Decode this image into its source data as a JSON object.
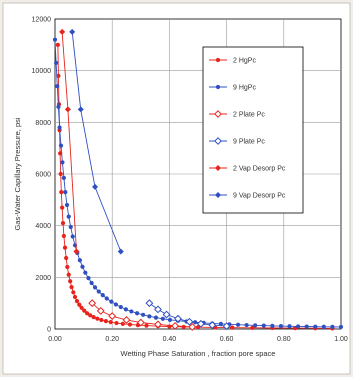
{
  "chart_data": {
    "type": "scatter",
    "xlabel": "Wetting Phase Saturation , fraction pore space",
    "ylabel": "Gas-Water Capillary Pressure, psi",
    "xlim": [
      0,
      1
    ],
    "ylim": [
      0,
      12000
    ],
    "x_ticks": [
      "0.00",
      "0.20",
      "0.40",
      "0.60",
      "0.80",
      "1.00"
    ],
    "y_ticks": [
      "0",
      "2000",
      "4000",
      "6000",
      "8000",
      "10000",
      "12000"
    ],
    "grid": true,
    "legend_position": "top-right",
    "series": [
      {
        "name": "2 HgPc",
        "color": "#e8231c",
        "marker": "circle-filled",
        "line": true,
        "points": [
          [
            0.01,
            11000
          ],
          [
            0.012,
            9800
          ],
          [
            0.014,
            8700
          ],
          [
            0.016,
            7700
          ],
          [
            0.018,
            6800
          ],
          [
            0.02,
            6000
          ],
          [
            0.022,
            5300
          ],
          [
            0.025,
            4700
          ],
          [
            0.028,
            4100
          ],
          [
            0.031,
            3600
          ],
          [
            0.035,
            3150
          ],
          [
            0.039,
            2750
          ],
          [
            0.043,
            2400
          ],
          [
            0.048,
            2100
          ],
          [
            0.053,
            1850
          ],
          [
            0.058,
            1620
          ],
          [
            0.064,
            1420
          ],
          [
            0.07,
            1240
          ],
          [
            0.077,
            1080
          ],
          [
            0.085,
            940
          ],
          [
            0.093,
            820
          ],
          [
            0.102,
            710
          ],
          [
            0.112,
            610
          ],
          [
            0.123,
            530
          ],
          [
            0.135,
            460
          ],
          [
            0.148,
            400
          ],
          [
            0.162,
            350
          ],
          [
            0.178,
            305
          ],
          [
            0.195,
            265
          ],
          [
            0.215,
            230
          ],
          [
            0.237,
            200
          ],
          [
            0.262,
            175
          ],
          [
            0.29,
            150
          ],
          [
            0.32,
            130
          ],
          [
            0.36,
            110
          ],
          [
            0.4,
            95
          ],
          [
            0.45,
            80
          ],
          [
            0.5,
            70
          ],
          [
            0.56,
            60
          ],
          [
            0.62,
            52
          ],
          [
            0.69,
            45
          ],
          [
            0.76,
            40
          ],
          [
            0.84,
            35
          ],
          [
            0.91,
            30
          ],
          [
            0.97,
            25
          ]
        ]
      },
      {
        "name": "9 HgPc",
        "color": "#2f4fc2",
        "marker": "circle-filled",
        "line": true,
        "points": [
          [
            0.0,
            11200
          ],
          [
            0.004,
            10300
          ],
          [
            0.008,
            9400
          ],
          [
            0.012,
            8600
          ],
          [
            0.016,
            7800
          ],
          [
            0.021,
            7100
          ],
          [
            0.026,
            6450
          ],
          [
            0.031,
            5850
          ],
          [
            0.036,
            5300
          ],
          [
            0.042,
            4800
          ],
          [
            0.048,
            4350
          ],
          [
            0.055,
            3950
          ],
          [
            0.062,
            3580
          ],
          [
            0.07,
            3240
          ],
          [
            0.078,
            2940
          ],
          [
            0.087,
            2660
          ],
          [
            0.096,
            2410
          ],
          [
            0.106,
            2180
          ],
          [
            0.117,
            1970
          ],
          [
            0.128,
            1780
          ],
          [
            0.14,
            1610
          ],
          [
            0.153,
            1450
          ],
          [
            0.167,
            1310
          ],
          [
            0.181,
            1180
          ],
          [
            0.197,
            1060
          ],
          [
            0.213,
            950
          ],
          [
            0.23,
            850
          ],
          [
            0.248,
            760
          ],
          [
            0.267,
            680
          ],
          [
            0.287,
            610
          ],
          [
            0.308,
            550
          ],
          [
            0.33,
            490
          ],
          [
            0.353,
            440
          ],
          [
            0.377,
            395
          ],
          [
            0.402,
            355
          ],
          [
            0.43,
            320
          ],
          [
            0.46,
            290
          ],
          [
            0.49,
            262
          ],
          [
            0.52,
            238
          ],
          [
            0.55,
            216
          ],
          [
            0.58,
            197
          ],
          [
            0.61,
            180
          ],
          [
            0.64,
            165
          ],
          [
            0.67,
            152
          ],
          [
            0.7,
            140
          ],
          [
            0.73,
            130
          ],
          [
            0.76,
            121
          ],
          [
            0.79,
            113
          ],
          [
            0.82,
            106
          ],
          [
            0.85,
            100
          ],
          [
            0.88,
            95
          ],
          [
            0.91,
            90
          ],
          [
            0.94,
            86
          ],
          [
            0.97,
            83
          ],
          [
            1.0,
            80
          ]
        ]
      },
      {
        "name": "2 Plate Pc",
        "color": "#e8231c",
        "marker": "diamond-open",
        "line": true,
        "points": [
          [
            0.13,
            1000
          ],
          [
            0.16,
            700
          ],
          [
            0.2,
            500
          ],
          [
            0.25,
            350
          ],
          [
            0.3,
            250
          ],
          [
            0.36,
            180
          ],
          [
            0.42,
            120
          ],
          [
            0.48,
            80
          ]
        ]
      },
      {
        "name": "9 Plate Pc",
        "color": "#2f4fc2",
        "marker": "diamond-open",
        "line": true,
        "points": [
          [
            0.33,
            1000
          ],
          [
            0.36,
            760
          ],
          [
            0.39,
            560
          ],
          [
            0.43,
            400
          ],
          [
            0.47,
            280
          ],
          [
            0.51,
            200
          ],
          [
            0.55,
            150
          ],
          [
            0.6,
            110
          ]
        ]
      },
      {
        "name": "2 Vap Desorp Pc",
        "color": "#e8231c",
        "marker": "diamond-filled",
        "line": true,
        "points": [
          [
            0.025,
            11500
          ],
          [
            0.045,
            8500
          ],
          [
            0.075,
            3000
          ]
        ]
      },
      {
        "name": "9 Vap Desorp Pc",
        "color": "#2f4fc2",
        "marker": "diamond-filled",
        "line": true,
        "points": [
          [
            0.06,
            11500
          ],
          [
            0.09,
            8500
          ],
          [
            0.14,
            5500
          ],
          [
            0.23,
            3000
          ]
        ]
      }
    ]
  }
}
